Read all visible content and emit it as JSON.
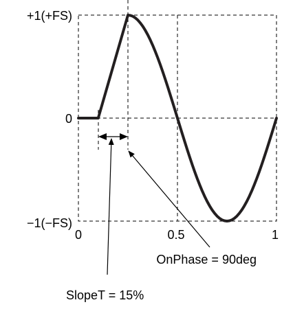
{
  "y_axis": {
    "top_label": "+1(+FS)",
    "zero_label": "0",
    "bottom_label": "−1(−FS)"
  },
  "x_axis": {
    "ticks": [
      "0",
      "0.5",
      "1"
    ]
  },
  "annotations": {
    "on_phase": "OnPhase = 90deg",
    "slope_t": "SlopeT = 15%"
  },
  "waveform": {
    "slope_fraction": 0.15,
    "on_phase_deg": 90,
    "slope_start": 0.1,
    "peak_x": 0.25,
    "samples": 60
  },
  "colors": {
    "wave": "#231f20",
    "lines": "#000000"
  }
}
